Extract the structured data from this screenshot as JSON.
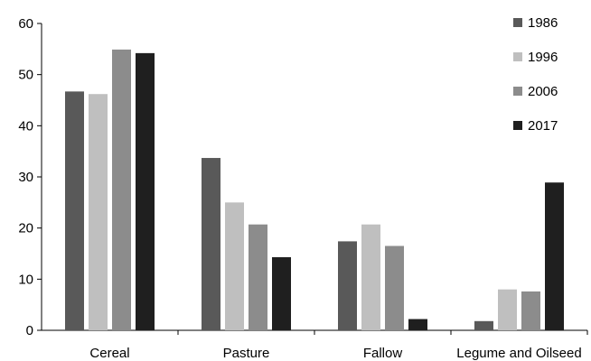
{
  "chart_data": {
    "type": "bar",
    "title": "",
    "xlabel": "",
    "ylabel": "",
    "ylim": [
      0,
      60
    ],
    "yticks": [
      0,
      10,
      20,
      30,
      40,
      50,
      60
    ],
    "grid": false,
    "legend_position": "top-right",
    "categories": [
      "Cereal",
      "Pasture",
      "Fallow",
      "Legume and Oilseed"
    ],
    "series": [
      {
        "name": "1986",
        "color": "#595959",
        "values": [
          46.7,
          33.7,
          17.4,
          1.8
        ]
      },
      {
        "name": "1996",
        "color": "#bfbfbf",
        "values": [
          46.2,
          25.0,
          20.7,
          8.0
        ]
      },
      {
        "name": "2006",
        "color": "#8c8c8c",
        "values": [
          54.9,
          20.7,
          16.5,
          7.6
        ]
      },
      {
        "name": "2017",
        "color": "#1f1f1f",
        "values": [
          54.2,
          14.3,
          2.2,
          28.9
        ]
      }
    ]
  }
}
